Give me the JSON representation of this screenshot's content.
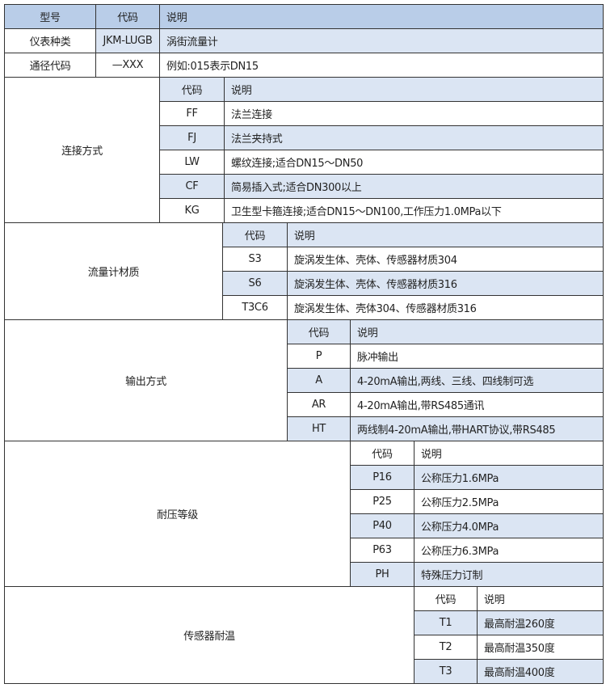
{
  "header": {
    "model": "型号",
    "code": "代码",
    "desc": "说明"
  },
  "top_rows": [
    {
      "label": "仪表种类",
      "code": "JKM-LUGB",
      "desc": "涡街流量计",
      "shaded": true
    },
    {
      "label": "通径代码",
      "code": "—XXX",
      "desc": "例如:015表示DN15",
      "shaded": false
    }
  ],
  "sections": [
    {
      "label": "连接方式",
      "sub_header": {
        "code": "代码",
        "desc": "说明",
        "shaded": true
      },
      "rows": [
        {
          "code": "FF",
          "desc": "法兰连接",
          "shaded": false
        },
        {
          "code": "FJ",
          "desc": "法兰夹持式",
          "shaded": true
        },
        {
          "code": "LW",
          "desc": "螺纹连接;适合DN15～DN50",
          "shaded": false
        },
        {
          "code": "CF",
          "desc": "简易插入式;适合DN300以上",
          "shaded": true
        },
        {
          "code": "KG",
          "desc": "卫生型卡箍连接;适合DN15～DN100,工作压力1.0MPa以下",
          "shaded": false
        }
      ]
    },
    {
      "label": "流量计材质",
      "sub_header": {
        "code": "代码",
        "desc": "说明",
        "shaded": true
      },
      "rows": [
        {
          "code": "S3",
          "desc": "旋涡发生体、壳体、传感器材质304",
          "shaded": false
        },
        {
          "code": "S6",
          "desc": "旋涡发生体、壳体、传感器材质316",
          "shaded": true
        },
        {
          "code": "T3C6",
          "desc": "旋涡发生体、壳体304、传感器材质316",
          "shaded": false
        }
      ]
    },
    {
      "label": "输出方式",
      "sub_header": {
        "code": "代码",
        "desc": "说明",
        "shaded": true
      },
      "rows": [
        {
          "code": "P",
          "desc": "脉冲输出",
          "shaded": false
        },
        {
          "code": "A",
          "desc": "4-20mA输出,两线、三线、四线制可选",
          "shaded": true
        },
        {
          "code": "AR",
          "desc": "4-20mA输出,带RS485通讯",
          "shaded": false
        },
        {
          "code": "HT",
          "desc": "两线制4-20mA输出,带HART协议,带RS485",
          "shaded": true
        }
      ]
    },
    {
      "label": "耐压等级",
      "sub_header": {
        "code": "代码",
        "desc": "说明",
        "shaded": false
      },
      "rows": [
        {
          "code": "P16",
          "desc": "公称压力1.6MPa",
          "shaded": true
        },
        {
          "code": "P25",
          "desc": "公称压力2.5MPa",
          "shaded": false
        },
        {
          "code": "P40",
          "desc": "公称压力4.0MPa",
          "shaded": true
        },
        {
          "code": "P63",
          "desc": "公称压力6.3MPa",
          "shaded": false
        },
        {
          "code": "PH",
          "desc": "特殊压力订制",
          "shaded": true
        }
      ]
    },
    {
      "label": "传感器耐温",
      "sub_header": {
        "code": "代码",
        "desc": "说明",
        "shaded": false
      },
      "rows": [
        {
          "code": "T1",
          "desc": "最高耐温260度",
          "shaded": true
        },
        {
          "code": "T2",
          "desc": "最高耐温350度",
          "shaded": false
        },
        {
          "code": "T3",
          "desc": "最高耐温400度",
          "shaded": true
        }
      ]
    }
  ]
}
